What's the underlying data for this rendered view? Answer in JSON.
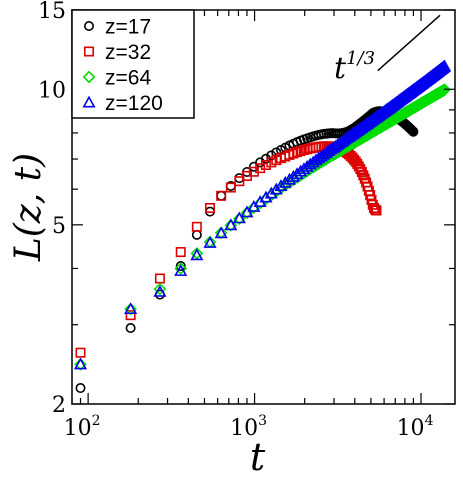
{
  "chart_data": {
    "type": "scatter",
    "xscale": "log",
    "yscale": "log",
    "xlim": [
      80,
      16000
    ],
    "ylim": [
      2,
      15
    ],
    "xlabel": "t",
    "ylabel": "L(z, t)",
    "x_ticks": [
      {
        "value": 100,
        "base": "10",
        "exp": "2"
      },
      {
        "value": 1000,
        "base": "10",
        "exp": "3"
      },
      {
        "value": 10000,
        "base": "10",
        "exp": "4"
      }
    ],
    "y_ticks": [
      {
        "value": 2,
        "label": "2"
      },
      {
        "value": 5,
        "label": "5"
      },
      {
        "value": 10,
        "label": "10"
      },
      {
        "value": 15,
        "label": "15"
      }
    ],
    "legend_position": "top-left",
    "guide": {
      "label_base": "t",
      "label_exp": "1/3",
      "x": [
        5500,
        13000
      ],
      "y": [
        11.0,
        14.6
      ]
    },
    "series": [
      {
        "name": "z=17",
        "marker": "circle",
        "color": "#000000",
        "x": [
          90,
          180,
          270,
          360,
          450,
          540,
          630,
          720,
          810,
          900,
          990,
          1080,
          1170,
          1260,
          1350,
          1440,
          1530,
          1620,
          1710,
          1800,
          1890,
          1980,
          2070,
          2160,
          2250,
          2340,
          2430,
          2520,
          2610,
          2700,
          2790,
          2880,
          2970,
          3060,
          3150,
          3240,
          3330,
          3420,
          3510,
          3600,
          3690,
          3780,
          3870,
          3960,
          4050,
          4140,
          4230,
          4320,
          4410,
          4500,
          4590,
          4680,
          4770,
          4860,
          4950,
          5040,
          5130,
          5220,
          5310,
          5400,
          5490,
          5580,
          5670,
          5760,
          5850,
          5940,
          6030,
          6120,
          6210,
          6300,
          6390,
          6480,
          6570,
          6660,
          6750,
          6840,
          6930,
          7020,
          7110,
          7200,
          7290,
          7380,
          7470,
          7560,
          7650,
          7740,
          7830,
          7920,
          8010,
          8100,
          8190,
          8280,
          8370,
          8460,
          8550,
          8640,
          8730,
          8820,
          8910,
          9000
        ],
        "y": [
          2.17,
          2.95,
          3.5,
          4.05,
          4.75,
          5.35,
          5.8,
          6.1,
          6.35,
          6.55,
          6.73,
          6.88,
          7.01,
          7.13,
          7.24,
          7.33,
          7.42,
          7.5,
          7.57,
          7.63,
          7.69,
          7.74,
          7.78,
          7.82,
          7.86,
          7.89,
          7.92,
          7.94,
          7.96,
          7.97,
          7.98,
          7.99,
          7.99,
          7.98,
          7.98,
          7.98,
          7.99,
          8.0,
          8.02,
          8.05,
          8.08,
          8.12,
          8.16,
          8.2,
          8.25,
          8.3,
          8.35,
          8.4,
          8.45,
          8.5,
          8.55,
          8.6,
          8.65,
          8.7,
          8.75,
          8.8,
          8.85,
          8.88,
          8.9,
          8.92,
          8.93,
          8.94,
          8.94,
          8.93,
          8.92,
          8.9,
          8.88,
          8.86,
          8.84,
          8.82,
          8.8,
          8.78,
          8.76,
          8.74,
          8.72,
          8.7,
          8.68,
          8.66,
          8.64,
          8.62,
          8.6,
          8.58,
          8.55,
          8.52,
          8.5,
          8.47,
          8.44,
          8.41,
          8.38,
          8.35,
          8.32,
          8.29,
          8.26,
          8.23,
          8.2,
          8.17,
          8.14,
          8.11,
          8.08,
          8.05
        ]
      },
      {
        "name": "z=32",
        "marker": "square",
        "color": "#dd0000",
        "x": [
          90,
          180,
          270,
          360,
          450,
          540,
          630,
          720,
          810,
          900,
          990,
          1080,
          1170,
          1260,
          1350,
          1440,
          1530,
          1620,
          1710,
          1800,
          1890,
          1980,
          2070,
          2160,
          2250,
          2340,
          2430,
          2520,
          2610,
          2700,
          2790,
          2880,
          2970,
          3060,
          3150,
          3240,
          3330,
          3420,
          3510,
          3600,
          3690,
          3780,
          3870,
          3960,
          4050,
          4140,
          4230,
          4320,
          4410,
          4500,
          4590,
          4680,
          4770,
          4860,
          4950,
          5040,
          5130,
          5220,
          5310,
          5400
        ],
        "y": [
          2.6,
          3.15,
          3.8,
          4.35,
          4.95,
          5.45,
          5.8,
          6.05,
          6.25,
          6.42,
          6.56,
          6.68,
          6.79,
          6.88,
          6.96,
          7.03,
          7.09,
          7.15,
          7.2,
          7.25,
          7.29,
          7.33,
          7.36,
          7.39,
          7.41,
          7.43,
          7.45,
          7.46,
          7.47,
          7.47,
          7.47,
          7.46,
          7.45,
          7.43,
          7.41,
          7.38,
          7.35,
          7.31,
          7.27,
          7.22,
          7.17,
          7.11,
          7.05,
          6.98,
          6.91,
          6.83,
          6.74,
          6.65,
          6.55,
          6.44,
          6.33,
          6.21,
          6.08,
          5.95,
          5.82,
          5.68,
          5.54,
          5.45,
          5.4,
          5.38
        ]
      },
      {
        "name": "z=64",
        "marker": "diamond",
        "color": "#00dd00",
        "x": [
          90,
          180,
          270,
          360,
          450,
          540,
          630,
          720,
          810,
          900,
          990,
          1080,
          1170,
          1260,
          1350,
          1440,
          1530,
          1620,
          1710,
          1800,
          1890,
          1980,
          2070,
          2160,
          2250,
          2340,
          2430,
          2520,
          2610,
          2700,
          2790,
          2880,
          2970,
          3060,
          3150,
          3240,
          3330,
          3420,
          3510,
          3600,
          3690,
          3780,
          3870,
          3960,
          4050,
          4140,
          4230,
          4320,
          4410,
          4500,
          4590,
          4680,
          4770,
          4860,
          4950,
          5040,
          5130,
          5220,
          5310,
          5400,
          5490,
          5580,
          5670,
          5760,
          5850,
          5940,
          6030,
          6120,
          6210,
          6300,
          6390,
          6480,
          6570,
          6660,
          6750,
          6840,
          6930,
          7020,
          7110,
          7200,
          7290,
          7380,
          7470,
          7560,
          7650,
          7740,
          7830,
          7920,
          8010,
          8100,
          8190,
          8280,
          8370,
          8460,
          8550,
          8640,
          8730,
          8820,
          8910,
          9000,
          9090,
          9180,
          9270,
          9360,
          9450,
          9540,
          9630,
          9720,
          9810,
          9900,
          9990,
          10080,
          10170,
          10260,
          10350,
          10440,
          10530,
          10620,
          10710,
          10800,
          10890,
          10980,
          11070,
          11160,
          11250,
          11340,
          11430,
          11520,
          11610,
          11700,
          11790,
          11880,
          11970,
          12060,
          12150,
          12240,
          12330,
          12420,
          12510,
          12600,
          12690,
          12780,
          12870,
          12960,
          13050,
          13140,
          13230,
          13320,
          13410,
          13500,
          13590,
          13680,
          13770,
          13860
        ],
        "y": [
          2.45,
          3.25,
          3.6,
          4.0,
          4.32,
          4.58,
          4.8,
          4.99,
          5.16,
          5.32,
          5.46,
          5.59,
          5.71,
          5.82,
          5.93,
          6.03,
          6.12,
          6.21,
          6.29,
          6.37,
          6.44,
          6.51,
          6.58,
          6.65,
          6.71,
          6.77,
          6.83,
          6.89,
          6.94,
          6.99,
          7.05,
          7.1,
          7.14,
          7.19,
          7.24,
          7.28,
          7.32,
          7.37,
          7.41,
          7.45,
          7.49,
          7.53,
          7.57,
          7.6,
          7.64,
          7.68,
          7.71,
          7.75,
          7.78,
          7.82,
          7.85,
          7.88,
          7.91,
          7.95,
          7.98,
          8.01,
          8.04,
          8.07,
          8.1,
          8.13,
          8.16,
          8.19,
          8.22,
          8.24,
          8.27,
          8.3,
          8.33,
          8.35,
          8.38,
          8.41,
          8.43,
          8.46,
          8.48,
          8.51,
          8.53,
          8.56,
          8.58,
          8.61,
          8.63,
          8.65,
          8.68,
          8.7,
          8.72,
          8.75,
          8.77,
          8.79,
          8.81,
          8.84,
          8.86,
          8.88,
          8.9,
          8.92,
          8.94,
          8.96,
          8.98,
          9.01,
          9.03,
          9.05,
          9.07,
          9.09,
          9.11,
          9.12,
          9.14,
          9.16,
          9.18,
          9.2,
          9.22,
          9.24,
          9.26,
          9.28,
          9.29,
          9.31,
          9.33,
          9.35,
          9.37,
          9.38,
          9.4,
          9.42,
          9.44,
          9.45,
          9.47,
          9.49,
          9.5,
          9.52,
          9.54,
          9.55,
          9.57,
          9.59,
          9.6,
          9.62,
          9.63,
          9.65,
          9.67,
          9.68,
          9.7,
          9.71,
          9.73,
          9.74,
          9.76,
          9.77,
          9.79,
          9.8,
          9.82,
          9.83,
          9.85,
          9.86,
          9.88,
          9.89,
          9.91,
          9.92,
          9.93,
          9.95,
          9.96,
          9.98
        ]
      },
      {
        "name": "z=120",
        "marker": "triangle",
        "color": "#0000ee",
        "x": [
          90,
          180,
          270,
          360,
          450,
          540,
          630,
          720,
          810,
          900,
          990,
          1080,
          1170,
          1260,
          1350,
          1440,
          1530,
          1620,
          1710,
          1800,
          1890,
          1980,
          2070,
          2160,
          2250,
          2340,
          2430,
          2520,
          2610,
          2700,
          2790,
          2880,
          2970,
          3060,
          3150,
          3240,
          3330,
          3420,
          3510,
          3600,
          3690,
          3780,
          3870,
          3960,
          4050,
          4140,
          4230,
          4320,
          4410,
          4500,
          4590,
          4680,
          4770,
          4860,
          4950,
          5040,
          5130,
          5220,
          5310,
          5400,
          5490,
          5580,
          5670,
          5760,
          5850,
          5940,
          6030,
          6120,
          6210,
          6300,
          6390,
          6480,
          6570,
          6660,
          6750,
          6840,
          6930,
          7020,
          7110,
          7200,
          7290,
          7380,
          7470,
          7560,
          7650,
          7740,
          7830,
          7920,
          8010,
          8100,
          8190,
          8280,
          8370,
          8460,
          8550,
          8640,
          8730,
          8820,
          8910,
          9000,
          9090,
          9180,
          9270,
          9360,
          9450,
          9540,
          9630,
          9720,
          9810,
          9900,
          9990,
          10080,
          10170,
          10260,
          10350,
          10440,
          10530,
          10620,
          10710,
          10800,
          10890,
          10980,
          11070,
          11160,
          11250,
          11340,
          11430,
          11520,
          11610,
          11700,
          11790,
          11880,
          11970,
          12060,
          12150,
          12240,
          12330,
          12420,
          12510,
          12600,
          12690,
          12780,
          12870,
          12960,
          13050,
          13140,
          13230,
          13320,
          13410,
          13500,
          13590,
          13680,
          13770,
          13860
        ],
        "y": [
          2.45,
          3.25,
          3.55,
          3.95,
          4.28,
          4.56,
          4.79,
          4.99,
          5.17,
          5.33,
          5.48,
          5.62,
          5.75,
          5.87,
          5.99,
          6.1,
          6.2,
          6.3,
          6.39,
          6.48,
          6.57,
          6.65,
          6.73,
          6.81,
          6.88,
          6.96,
          7.03,
          7.09,
          7.16,
          7.22,
          7.29,
          7.35,
          7.41,
          7.46,
          7.52,
          7.58,
          7.63,
          7.68,
          7.74,
          7.79,
          7.84,
          7.89,
          7.94,
          7.98,
          8.03,
          8.08,
          8.12,
          8.17,
          8.21,
          8.26,
          8.3,
          8.34,
          8.38,
          8.43,
          8.47,
          8.51,
          8.55,
          8.59,
          8.63,
          8.66,
          8.7,
          8.74,
          8.78,
          8.82,
          8.85,
          8.89,
          8.92,
          8.96,
          9.0,
          9.03,
          9.06,
          9.1,
          9.13,
          9.17,
          9.2,
          9.23,
          9.27,
          9.3,
          9.33,
          9.36,
          9.39,
          9.43,
          9.46,
          9.49,
          9.52,
          9.55,
          9.58,
          9.61,
          9.64,
          9.67,
          9.7,
          9.73,
          9.76,
          9.78,
          9.81,
          9.84,
          9.87,
          9.9,
          9.93,
          9.95,
          9.98,
          10.01,
          10.03,
          10.06,
          10.09,
          10.11,
          10.14,
          10.17,
          10.19,
          10.22,
          10.24,
          10.27,
          10.29,
          10.32,
          10.35,
          10.37,
          10.39,
          10.42,
          10.44,
          10.47,
          10.49,
          10.52,
          10.54,
          10.56,
          10.59,
          10.61,
          10.64,
          10.66,
          10.68,
          10.71,
          10.73,
          10.75,
          10.78,
          10.8,
          10.82,
          10.84,
          10.87,
          10.89,
          10.91,
          10.93,
          10.96,
          10.98,
          11.0,
          11.02,
          11.04,
          11.07,
          11.09,
          11.11,
          11.13,
          11.15,
          11.17,
          11.2,
          11.22,
          11.24
        ]
      }
    ]
  }
}
